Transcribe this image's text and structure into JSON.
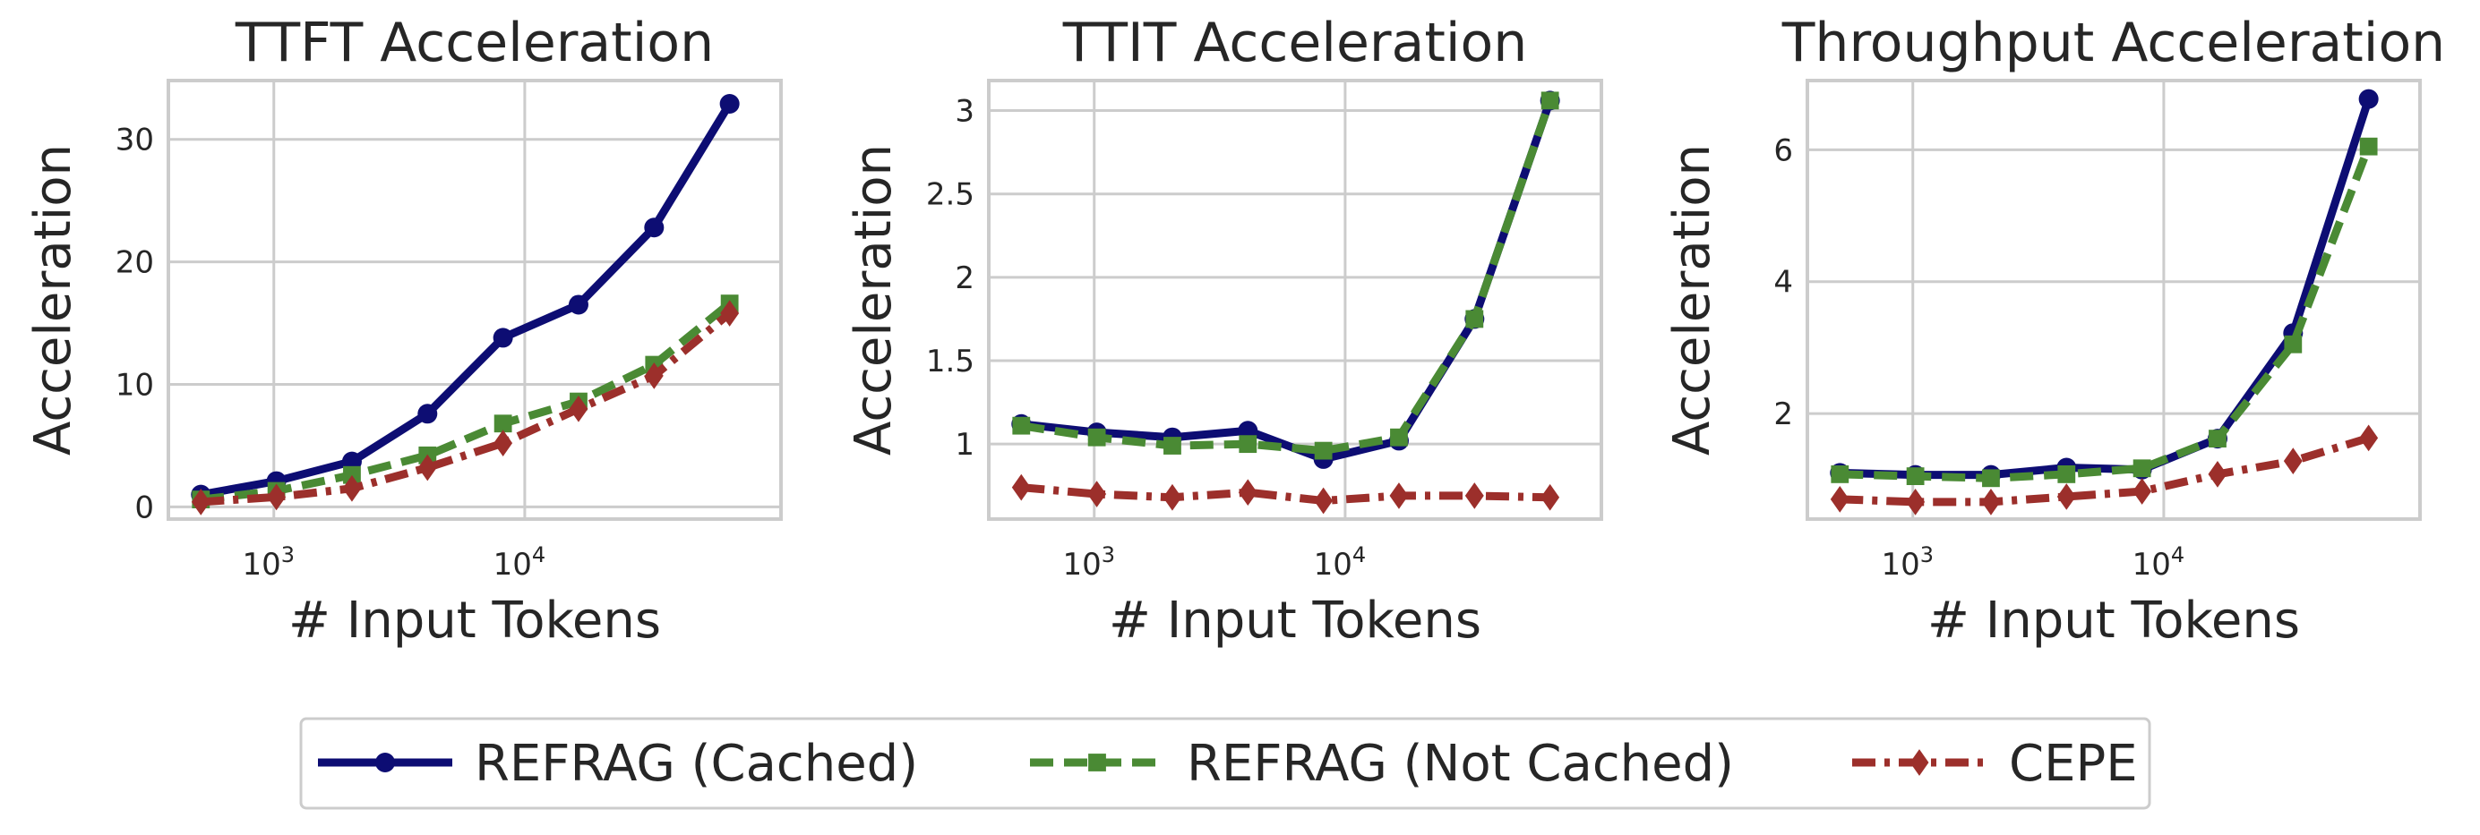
{
  "chart_data": [
    {
      "type": "line",
      "title": "TTFT Acceleration",
      "xlabel": "# Input Tokens",
      "ylabel": "Acceleration",
      "xscale": "log",
      "xlim": [
        380,
        105000
      ],
      "ylim": [
        -1.0,
        34.8
      ],
      "xticks": [
        {
          "value": 1000,
          "base": "10",
          "exp": "3"
        },
        {
          "value": 10000,
          "base": "10",
          "exp": "4"
        }
      ],
      "yticks": [
        0,
        10,
        20,
        30
      ],
      "x": [
        512,
        1024,
        2048,
        4096,
        8192,
        16384,
        32768,
        65536
      ],
      "series": [
        {
          "name": "REFRAG (Cached)",
          "values": [
            1.0,
            2.1,
            3.7,
            7.6,
            13.8,
            16.5,
            22.8,
            32.9
          ]
        },
        {
          "name": "REFRAG (Not Cached)",
          "values": [
            0.6,
            1.3,
            2.6,
            4.2,
            6.8,
            8.6,
            11.6,
            16.6
          ]
        },
        {
          "name": "CEPE",
          "values": [
            0.4,
            0.8,
            1.5,
            3.2,
            5.2,
            8.0,
            10.7,
            15.8
          ]
        }
      ],
      "grid": true
    },
    {
      "type": "line",
      "title": "TTIT Acceleration",
      "xlabel": "# Input Tokens",
      "ylabel": "Acceleration",
      "xscale": "log",
      "xlim": [
        380,
        105000
      ],
      "ylim": [
        0.55,
        3.18
      ],
      "xticks": [
        {
          "value": 1000,
          "base": "10",
          "exp": "3"
        },
        {
          "value": 10000,
          "base": "10",
          "exp": "4"
        }
      ],
      "yticks": [
        1.0,
        1.5,
        2.0,
        2.5,
        3.0
      ],
      "x": [
        512,
        1024,
        2048,
        4096,
        8192,
        16384,
        32768,
        65536
      ],
      "series": [
        {
          "name": "REFRAG (Cached)",
          "values": [
            1.12,
            1.07,
            1.04,
            1.08,
            0.91,
            1.02,
            1.75,
            3.06
          ]
        },
        {
          "name": "REFRAG (Not Cached)",
          "values": [
            1.11,
            1.04,
            0.99,
            1.0,
            0.96,
            1.04,
            1.75,
            3.06
          ]
        },
        {
          "name": "CEPE",
          "values": [
            0.74,
            0.7,
            0.68,
            0.71,
            0.66,
            0.69,
            0.69,
            0.68
          ]
        }
      ],
      "grid": true
    },
    {
      "type": "line",
      "title": "Throughput Acceleration",
      "xlabel": "# Input Tokens",
      "ylabel": "Acceleration",
      "xscale": "log",
      "xlim": [
        380,
        105000
      ],
      "ylim": [
        0.4,
        7.05
      ],
      "xticks": [
        {
          "value": 1000,
          "base": "10",
          "exp": "3"
        },
        {
          "value": 10000,
          "base": "10",
          "exp": "4"
        }
      ],
      "yticks": [
        2,
        4,
        6
      ],
      "x": [
        512,
        1024,
        2048,
        4096,
        8192,
        16384,
        32768,
        65536
      ],
      "series": [
        {
          "name": "REFRAG (Cached)",
          "values": [
            1.1,
            1.07,
            1.07,
            1.18,
            1.15,
            1.62,
            3.22,
            6.77
          ]
        },
        {
          "name": "REFRAG (Not Cached)",
          "values": [
            1.08,
            1.05,
            1.02,
            1.08,
            1.17,
            1.62,
            3.05,
            6.05
          ]
        },
        {
          "name": "CEPE",
          "values": [
            0.7,
            0.66,
            0.66,
            0.74,
            0.82,
            1.08,
            1.28,
            1.63
          ]
        }
      ],
      "grid": true
    }
  ],
  "legend": {
    "placement": "bottom-center",
    "entries": [
      {
        "label": "REFRAG (Cached)",
        "color": "#0d0d73",
        "dash": "solid",
        "marker": "circle"
      },
      {
        "label": "REFRAG (Not Cached)",
        "color": "#4a8a34",
        "dash": "dashed",
        "marker": "square"
      },
      {
        "label": "CEPE",
        "color": "#9c2f2b",
        "dash": "dashdot",
        "marker": "diamond"
      }
    ]
  }
}
